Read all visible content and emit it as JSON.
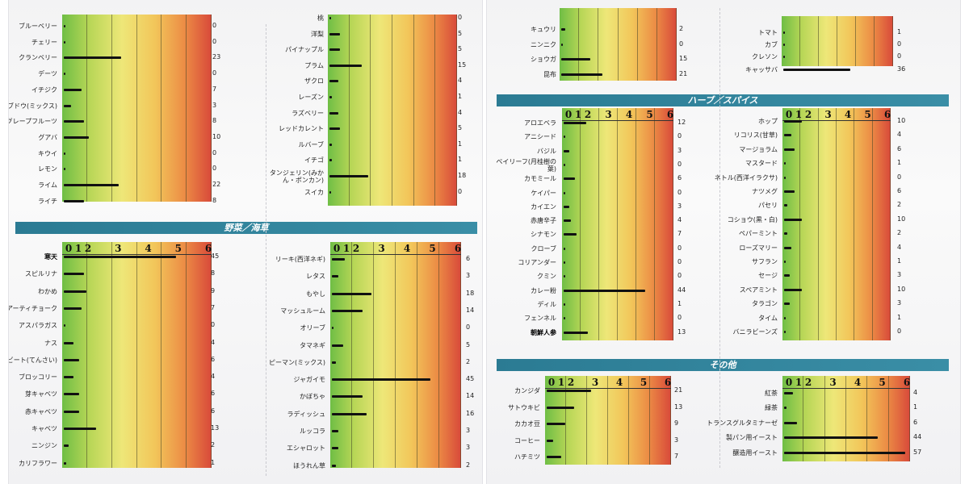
{
  "chart_data": [
    {
      "type": "bar",
      "scale_ticks": [
        "0",
        "1",
        "2",
        "3",
        "4",
        "5",
        "6"
      ],
      "photo": "left",
      "panels": [
        {
          "id": "fruit-1",
          "scale_header": false,
          "items": [
            {
              "label": "ブルーベリー",
              "value": 0
            },
            {
              "label": "チェリー",
              "value": 0
            },
            {
              "label": "クランベリー",
              "value": 23
            },
            {
              "label": "デーツ",
              "value": 0
            },
            {
              "label": "イチジク",
              "value": 7
            },
            {
              "label": "ブドウ(ミックス)",
              "value": 3
            },
            {
              "label": "グレープフルーツ",
              "value": 8
            },
            {
              "label": "グアバ",
              "value": 10
            },
            {
              "label": "キウイ",
              "value": 0
            },
            {
              "label": "レモン",
              "value": 0
            },
            {
              "label": "ライム",
              "value": 22
            },
            {
              "label": "ライチ",
              "value": 8
            }
          ]
        },
        {
          "id": "fruit-2",
          "scale_header": false,
          "items": [
            {
              "label": "桃",
              "value": 0
            },
            {
              "label": "洋梨",
              "value": 5
            },
            {
              "label": "パイナップル",
              "value": 5
            },
            {
              "label": "プラム",
              "value": 15
            },
            {
              "label": "ザクロ",
              "value": 4
            },
            {
              "label": "レーズン",
              "value": 1
            },
            {
              "label": "ラズベリー",
              "value": 4
            },
            {
              "label": "レッドカレント",
              "value": 5
            },
            {
              "label": "ルバーブ",
              "value": 1
            },
            {
              "label": "イチゴ",
              "value": 1
            },
            {
              "label": "タンジェリン(みかん・ポンカン)",
              "value": 18
            },
            {
              "label": "スイカ",
              "value": 0
            }
          ]
        },
        {
          "id": "veg-1",
          "scale_header": true,
          "items": [
            {
              "label": "寒天",
              "value": 45,
              "bold": true
            },
            {
              "label": "スピルリナ",
              "value": 8
            },
            {
              "label": "わかめ",
              "value": 9
            },
            {
              "label": "アーティチョーク",
              "value": 7
            },
            {
              "label": "アスパラガス",
              "value": 0
            },
            {
              "label": "ナス",
              "value": 4
            },
            {
              "label": "ビート(てんさい)",
              "value": 6
            },
            {
              "label": "ブロッコリー",
              "value": 4
            },
            {
              "label": "芽キャベツ",
              "value": 6
            },
            {
              "label": "赤キャベツ",
              "value": 6
            },
            {
              "label": "キャベツ",
              "value": 13
            },
            {
              "label": "ニンジン",
              "value": 2
            },
            {
              "label": "カリフラワー",
              "value": 1
            }
          ]
        },
        {
          "id": "veg-2",
          "scale_header": true,
          "items": [
            {
              "label": "リーキ(西洋ネギ)",
              "value": 6
            },
            {
              "label": "レタス",
              "value": 3
            },
            {
              "label": "もやし",
              "value": 18
            },
            {
              "label": "マッシュルーム",
              "value": 14
            },
            {
              "label": "オリーブ",
              "value": 0
            },
            {
              "label": "タマネギ",
              "value": 5
            },
            {
              "label": "ピーマン(ミックス)",
              "value": 2
            },
            {
              "label": "ジャガイモ",
              "value": 45
            },
            {
              "label": "かぼちゃ",
              "value": 14
            },
            {
              "label": "ラディッシュ",
              "value": 16
            },
            {
              "label": "ルッコラ",
              "value": 3
            },
            {
              "label": "エシャロット",
              "value": 3
            },
            {
              "label": "ほうれん草",
              "value": 2
            }
          ]
        }
      ]
    },
    {
      "type": "bar",
      "scale_ticks": [
        "0",
        "1",
        "2",
        "3",
        "4",
        "5",
        "6"
      ],
      "photo": "right",
      "panels": [
        {
          "id": "misc-veg-1",
          "scale_header": false,
          "items": [
            {
              "label": "キュウリ",
              "value": 2
            },
            {
              "label": "ニンニク",
              "value": 0
            },
            {
              "label": "ショウガ",
              "value": 15
            },
            {
              "label": "昆布",
              "value": 21
            }
          ]
        },
        {
          "id": "misc-veg-2",
          "scale_header": false,
          "items": [
            {
              "label": "トマト",
              "value": 1
            },
            {
              "label": "カブ",
              "value": 0
            },
            {
              "label": "クレソン",
              "value": 0
            },
            {
              "label": "キャッサバ",
              "value": 36
            }
          ]
        },
        {
          "id": "herb-1",
          "scale_header": true,
          "items": [
            {
              "label": "アロエベラ",
              "value": 12
            },
            {
              "label": "アニシード",
              "value": 0
            },
            {
              "label": "バジル",
              "value": 3
            },
            {
              "label": "ベイリーフ(月桂樹の葉)",
              "value": 0
            },
            {
              "label": "カモミール",
              "value": 6
            },
            {
              "label": "ケイパー",
              "value": 0
            },
            {
              "label": "カイエン",
              "value": 3
            },
            {
              "label": "赤唐辛子",
              "value": 4
            },
            {
              "label": "シナモン",
              "value": 7
            },
            {
              "label": "クローブ",
              "value": 0
            },
            {
              "label": "コリアンダー",
              "value": 0
            },
            {
              "label": "クミン",
              "value": 0
            },
            {
              "label": "カレー粉",
              "value": 44
            },
            {
              "label": "ディル",
              "value": 1
            },
            {
              "label": "フェンネル",
              "value": 0
            },
            {
              "label": "朝鮮人参",
              "value": 13,
              "bold": true
            }
          ]
        },
        {
          "id": "herb-2",
          "scale_header": true,
          "items": [
            {
              "label": "ホップ",
              "value": 10
            },
            {
              "label": "リコリス(甘草)",
              "value": 4
            },
            {
              "label": "マージョラム",
              "value": 6
            },
            {
              "label": "マスタード",
              "value": 1
            },
            {
              "label": "ネトル(西洋イラクサ)",
              "value": 0
            },
            {
              "label": "ナツメグ",
              "value": 6
            },
            {
              "label": "パセリ",
              "value": 2
            },
            {
              "label": "コショウ(黒・白)",
              "value": 10
            },
            {
              "label": "ペパーミント",
              "value": 2
            },
            {
              "label": "ローズマリー",
              "value": 4
            },
            {
              "label": "サフラン",
              "value": 1
            },
            {
              "label": "セージ",
              "value": 3
            },
            {
              "label": "スペアミント",
              "value": 10
            },
            {
              "label": "タラゴン",
              "value": 3
            },
            {
              "label": "タイム",
              "value": 1
            },
            {
              "label": "バニラビーンズ",
              "value": 0
            }
          ]
        },
        {
          "id": "other-1",
          "scale_header": true,
          "items": [
            {
              "label": "カンジダ",
              "value": 21
            },
            {
              "label": "サトウキビ",
              "value": 13
            },
            {
              "label": "カカオ豆",
              "value": 9
            },
            {
              "label": "コーヒー",
              "value": 3
            },
            {
              "label": "ハチミツ",
              "value": 7
            }
          ]
        },
        {
          "id": "other-2",
          "scale_header": true,
          "items": [
            {
              "label": "紅茶",
              "value": 4
            },
            {
              "label": "緑茶",
              "value": 1
            },
            {
              "label": "トランスグルタミナーゼ",
              "value": 6
            },
            {
              "label": "製パン用イースト",
              "value": 44
            },
            {
              "label": "醸造用イースト",
              "value": 57
            }
          ]
        }
      ]
    }
  ],
  "sections": {
    "vegetables": "野菜／海草",
    "herbs": "ハーブ／スパイス",
    "other": "その他"
  }
}
